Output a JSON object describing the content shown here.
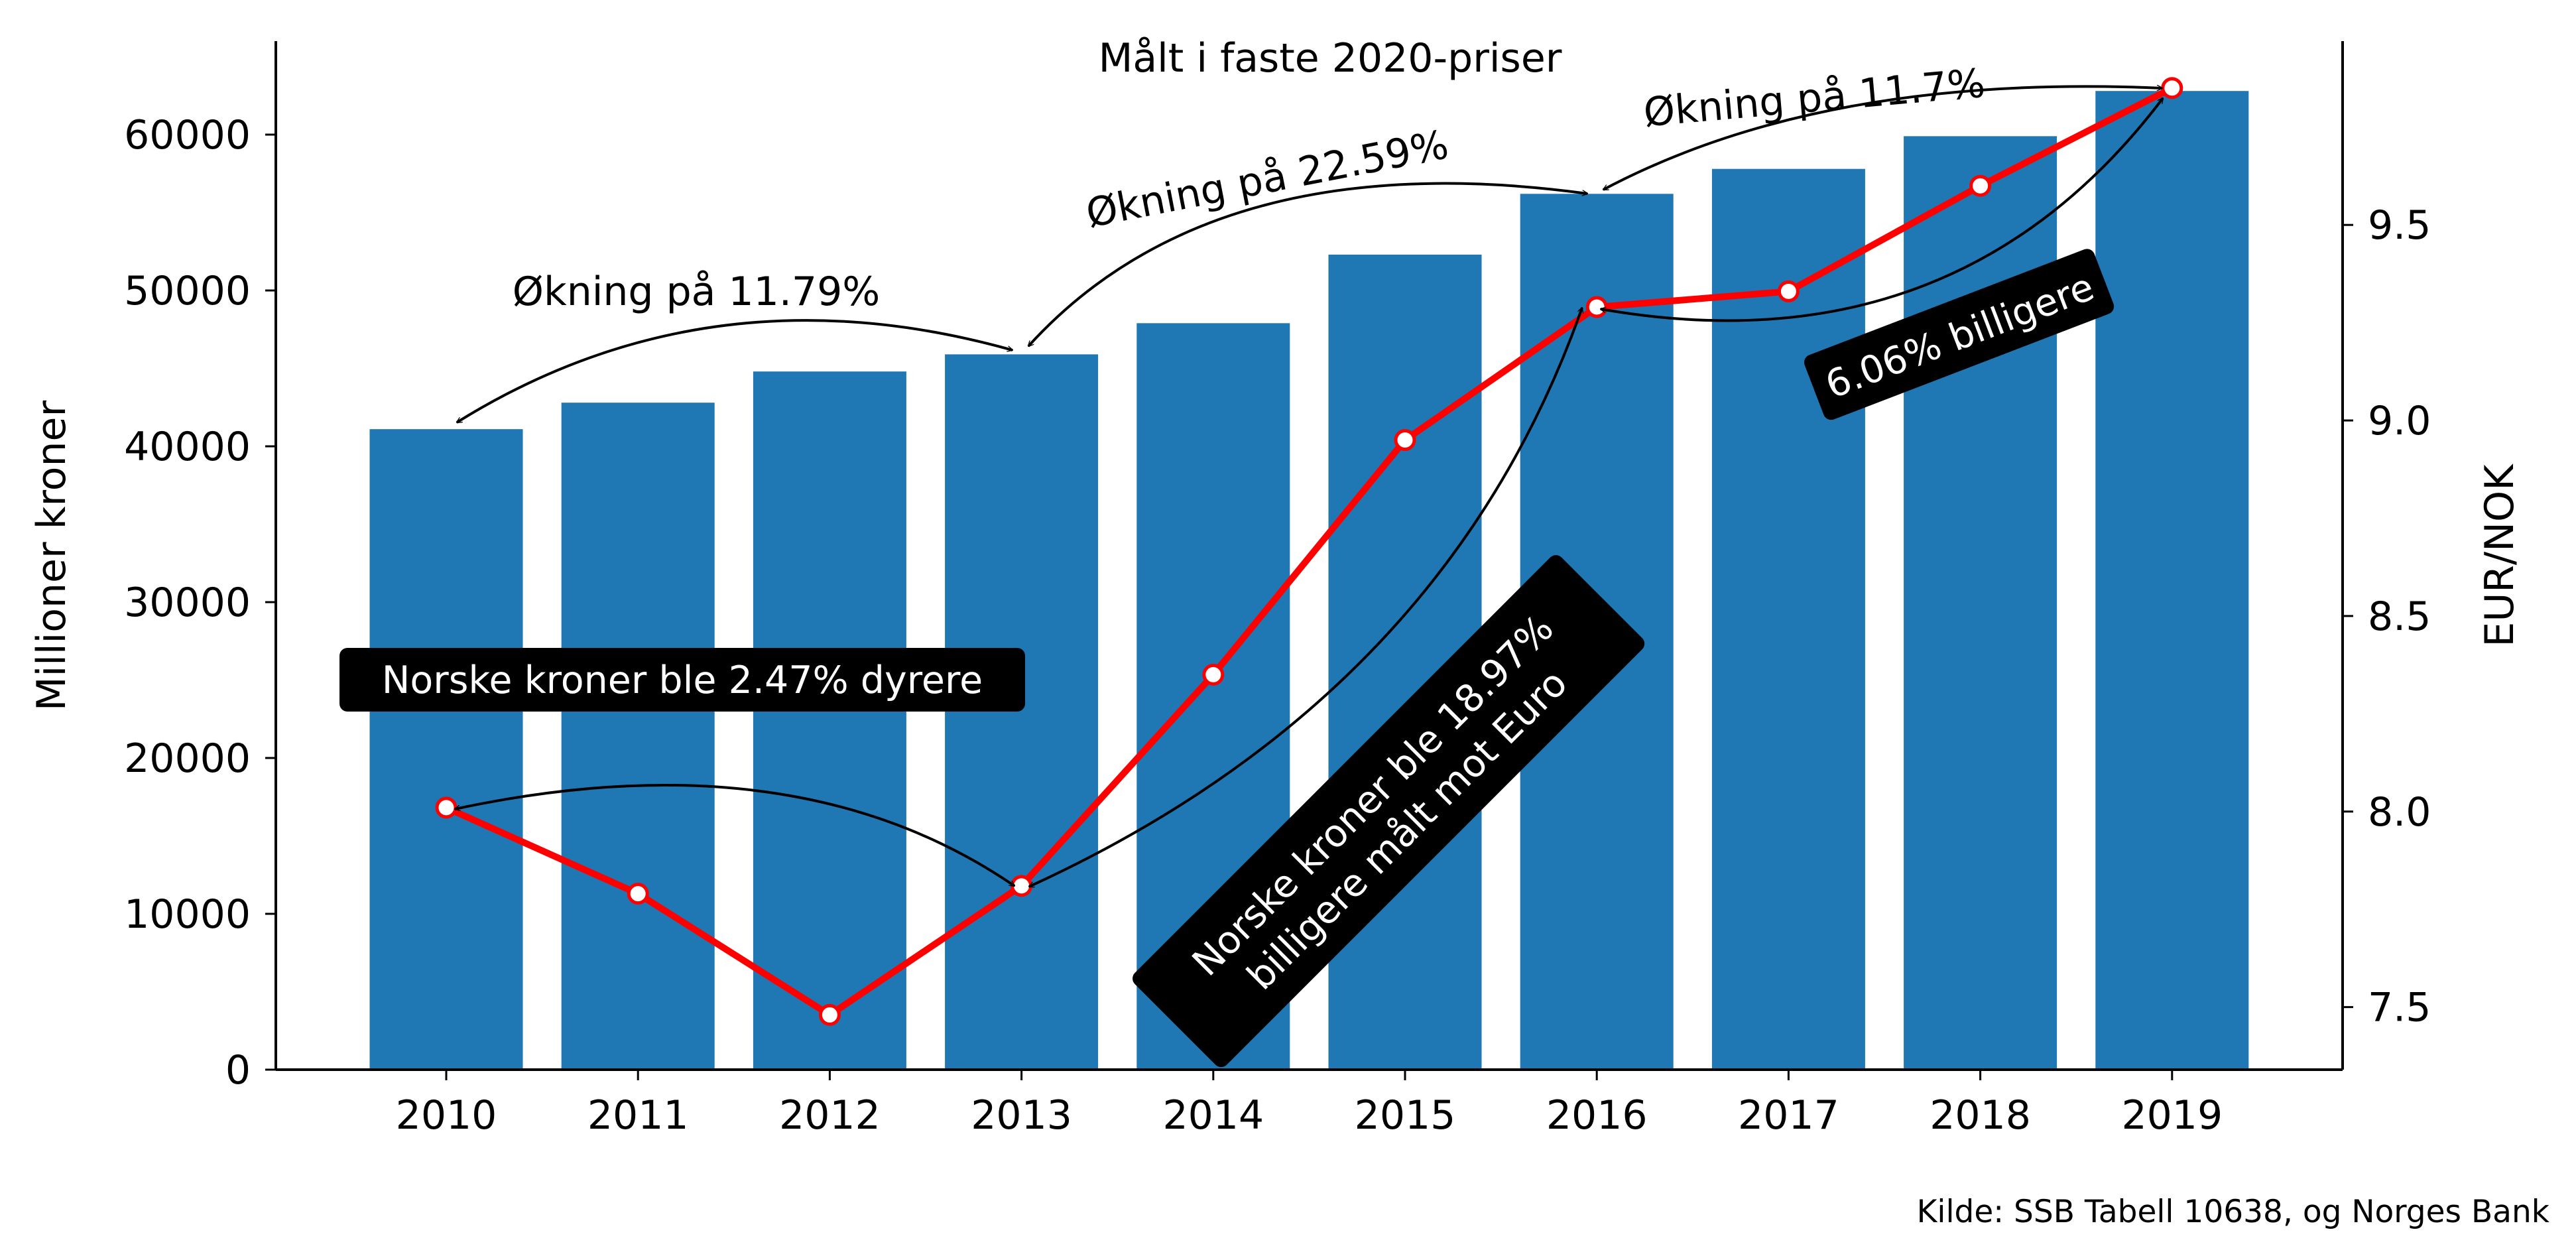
{
  "chart_data": {
    "type": "bar+line",
    "title": "Målt i faste 2020-priser",
    "source": "Kilde: SSB Tabell 10638, og Norges Bank",
    "xlabel": "",
    "ylabel_left": "Millioner kroner",
    "ylabel_right": "EUR/NOK",
    "categories": [
      "2010",
      "2011",
      "2012",
      "2013",
      "2014",
      "2015",
      "2016",
      "2017",
      "2018",
      "2019"
    ],
    "ylim_left": [
      0,
      66000
    ],
    "ylim_right": [
      7.34,
      9.97
    ],
    "yticks_left": [
      "0",
      "10000",
      "20000",
      "30000",
      "40000",
      "50000",
      "60000"
    ],
    "yticks_right": [
      "7.5",
      "8.0",
      "8.5",
      "9.0",
      "9.5"
    ],
    "bar_series": {
      "axis": "left",
      "color": "#1f77b4",
      "values": [
        41100,
        42800,
        44800,
        45900,
        47900,
        52300,
        56200,
        57800,
        59900,
        62800
      ]
    },
    "line_series": {
      "axis": "right",
      "color": "#ff0000",
      "marker_fill": "#ffffff",
      "values": [
        8.01,
        7.79,
        7.48,
        7.81,
        8.35,
        8.95,
        9.29,
        9.33,
        9.6,
        9.85
      ]
    },
    "annotations": {
      "increase_1": "Økning på 11.79%",
      "increase_2": "Økning på 22.59%",
      "increase_3": "Økning på 11.7%",
      "fx_box_1": "Norske kroner ble 2.47% dyrere",
      "fx_box_2_line1": "Norske kroner ble 18.97%",
      "fx_box_2_line2": "billigere målt mot Euro",
      "fx_box_3": "6.06% billigere"
    },
    "grid": false,
    "legend": "none"
  }
}
